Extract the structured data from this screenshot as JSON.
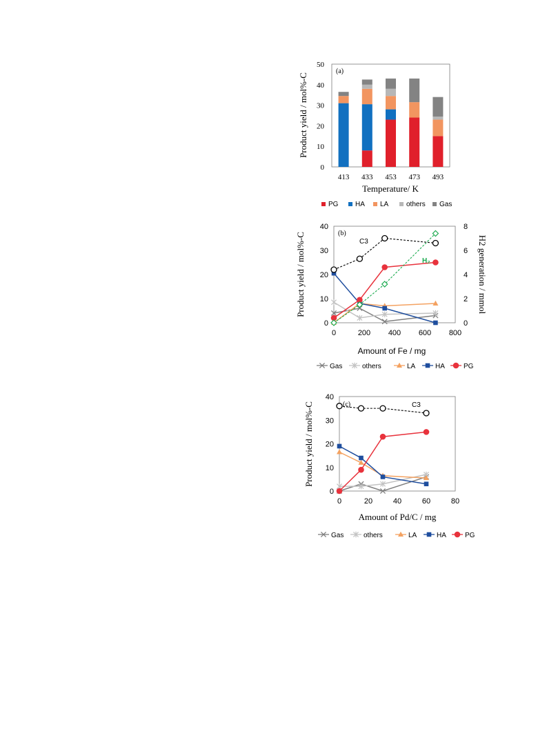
{
  "chart_data": [
    {
      "type": "bar",
      "panel_label": "(a)",
      "xlabel": "Temperature/ K",
      "ylabel": "Product yield / mol%-C",
      "ylim": [
        0,
        50
      ],
      "yticks": [
        0,
        10,
        20,
        30,
        40,
        50
      ],
      "categories": [
        "413",
        "433",
        "453",
        "473",
        "493"
      ],
      "series": [
        {
          "name": "PG",
          "color": "#e0202b",
          "values": [
            0,
            8,
            23,
            24,
            15
          ]
        },
        {
          "name": "HA",
          "color": "#1170c0",
          "values": [
            31,
            22.5,
            5,
            0,
            0
          ]
        },
        {
          "name": "LA",
          "color": "#f29560",
          "values": [
            3.5,
            7.5,
            6.5,
            7.5,
            8
          ]
        },
        {
          "name": "others",
          "color": "#b7b7b7",
          "values": [
            0,
            2,
            3.5,
            0,
            1.5
          ]
        },
        {
          "name": "Gas",
          "color": "#838383",
          "values": [
            2,
            2.5,
            5,
            11.5,
            9.5
          ]
        }
      ],
      "legend_position": "bottom",
      "grid": false
    },
    {
      "type": "line",
      "panel_label": "(b)",
      "xlabel": "Amount of Fe / mg",
      "ylabel": "Product yield / mol%-C",
      "y2label": "H2 generation / mmol",
      "xlim": [
        0,
        800
      ],
      "ylim": [
        0,
        40
      ],
      "y2lim": [
        0,
        8
      ],
      "xticks": [
        0,
        200,
        400,
        600,
        800
      ],
      "yticks": [
        0,
        10,
        20,
        30,
        40
      ],
      "y2ticks": [
        0,
        2,
        4,
        6,
        8
      ],
      "x": [
        0,
        170,
        335,
        670
      ],
      "series": [
        {
          "name": "Gas",
          "color": "#7f7f7f",
          "marker": "x",
          "values": [
            4,
            6,
            0.5,
            3
          ]
        },
        {
          "name": "others",
          "color": "#c2c2c2",
          "marker": "star",
          "values": [
            8.5,
            2,
            3.5,
            4
          ]
        },
        {
          "name": "LA",
          "color": "#f4a261",
          "marker": "triangle",
          "values": [
            0,
            8,
            7,
            8
          ]
        },
        {
          "name": "HA",
          "color": "#1f4e9e",
          "marker": "square",
          "values": [
            20.5,
            8,
            6,
            0
          ]
        },
        {
          "name": "PG",
          "color": "#e8323c",
          "marker": "circle",
          "values": [
            2,
            9.5,
            23,
            25
          ]
        },
        {
          "name": "C3",
          "color": "#000000",
          "marker": "open-circle",
          "dashed": true,
          "values": [
            22,
            26.5,
            35,
            33
          ]
        },
        {
          "name": "H₂",
          "color": "#1aaa4e",
          "marker": "open-diamond",
          "dashed": true,
          "axis": "right",
          "values": [
            0,
            1.5,
            3.2,
            7.4
          ]
        }
      ],
      "annotations": [
        "C3",
        "H₂"
      ],
      "legend": [
        "Gas",
        "others",
        "LA",
        "HA",
        "PG"
      ],
      "legend_position": "bottom"
    },
    {
      "type": "line",
      "panel_label": "(c)",
      "xlabel": "Amount of Pd/C / mg",
      "ylabel": "Product yield / mol%-C",
      "xlim": [
        0,
        80
      ],
      "ylim": [
        0,
        40
      ],
      "xticks": [
        0,
        20,
        40,
        60,
        80
      ],
      "yticks": [
        0,
        10,
        20,
        30,
        40
      ],
      "x": [
        0,
        15,
        30,
        60
      ],
      "series": [
        {
          "name": "Gas",
          "color": "#7f7f7f",
          "marker": "x",
          "values": [
            0,
            3,
            0,
            6
          ]
        },
        {
          "name": "others",
          "color": "#c2c2c2",
          "marker": "star",
          "values": [
            2,
            2,
            3,
            7
          ]
        },
        {
          "name": "LA",
          "color": "#f4a261",
          "marker": "triangle",
          "values": [
            16.5,
            12,
            6.5,
            5.5
          ]
        },
        {
          "name": "HA",
          "color": "#1f4e9e",
          "marker": "square",
          "values": [
            19,
            14,
            6,
            3
          ]
        },
        {
          "name": "PG",
          "color": "#e8323c",
          "marker": "circle",
          "values": [
            0,
            9,
            23,
            25
          ]
        },
        {
          "name": "C3",
          "color": "#000000",
          "marker": "open-circle",
          "dashed": true,
          "values": [
            36,
            35,
            35,
            33
          ]
        }
      ],
      "annotations": [
        "C3"
      ],
      "legend": [
        "Gas",
        "others",
        "LA",
        "HA",
        "PG"
      ],
      "legend_position": "bottom"
    }
  ]
}
